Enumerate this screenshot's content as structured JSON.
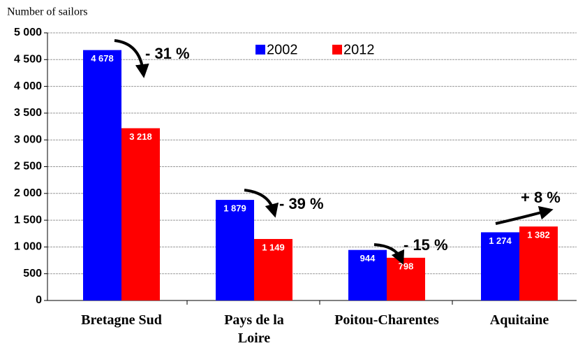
{
  "chart_data": {
    "type": "bar",
    "y_label": "Number of sailors",
    "categories": [
      "Bretagne Sud",
      "Pays de la Loire",
      "Poitou-Charentes",
      "Aquitaine"
    ],
    "series": [
      {
        "name": "2002",
        "color": "#0000ff",
        "values": [
          4678,
          1879,
          944,
          1274
        ],
        "value_labels": [
          "4 678",
          "1 879",
          "944",
          "1 274"
        ]
      },
      {
        "name": "2012",
        "color": "#ff0000",
        "values": [
          3218,
          1149,
          798,
          1382
        ],
        "value_labels": [
          "3 218",
          "1 149",
          "798",
          "1 382"
        ]
      }
    ],
    "annotations": [
      "- 31 %",
      "- 39 %",
      "- 15 %",
      "+ 8 %"
    ],
    "ylim": [
      0,
      5000
    ],
    "yticks": [
      {
        "value": 0,
        "label": "0"
      },
      {
        "value": 500,
        "label": "500"
      },
      {
        "value": 1000,
        "label": "1 000"
      },
      {
        "value": 1500,
        "label": "1 500"
      },
      {
        "value": 2000,
        "label": "2 000"
      },
      {
        "value": 2500,
        "label": "2 500"
      },
      {
        "value": 3000,
        "label": "3 000"
      },
      {
        "value": 3500,
        "label": "3 500"
      },
      {
        "value": 4000,
        "label": "4 000"
      },
      {
        "value": 4500,
        "label": "4 500"
      },
      {
        "value": 5000,
        "label": "5 000"
      }
    ],
    "grid": true
  }
}
